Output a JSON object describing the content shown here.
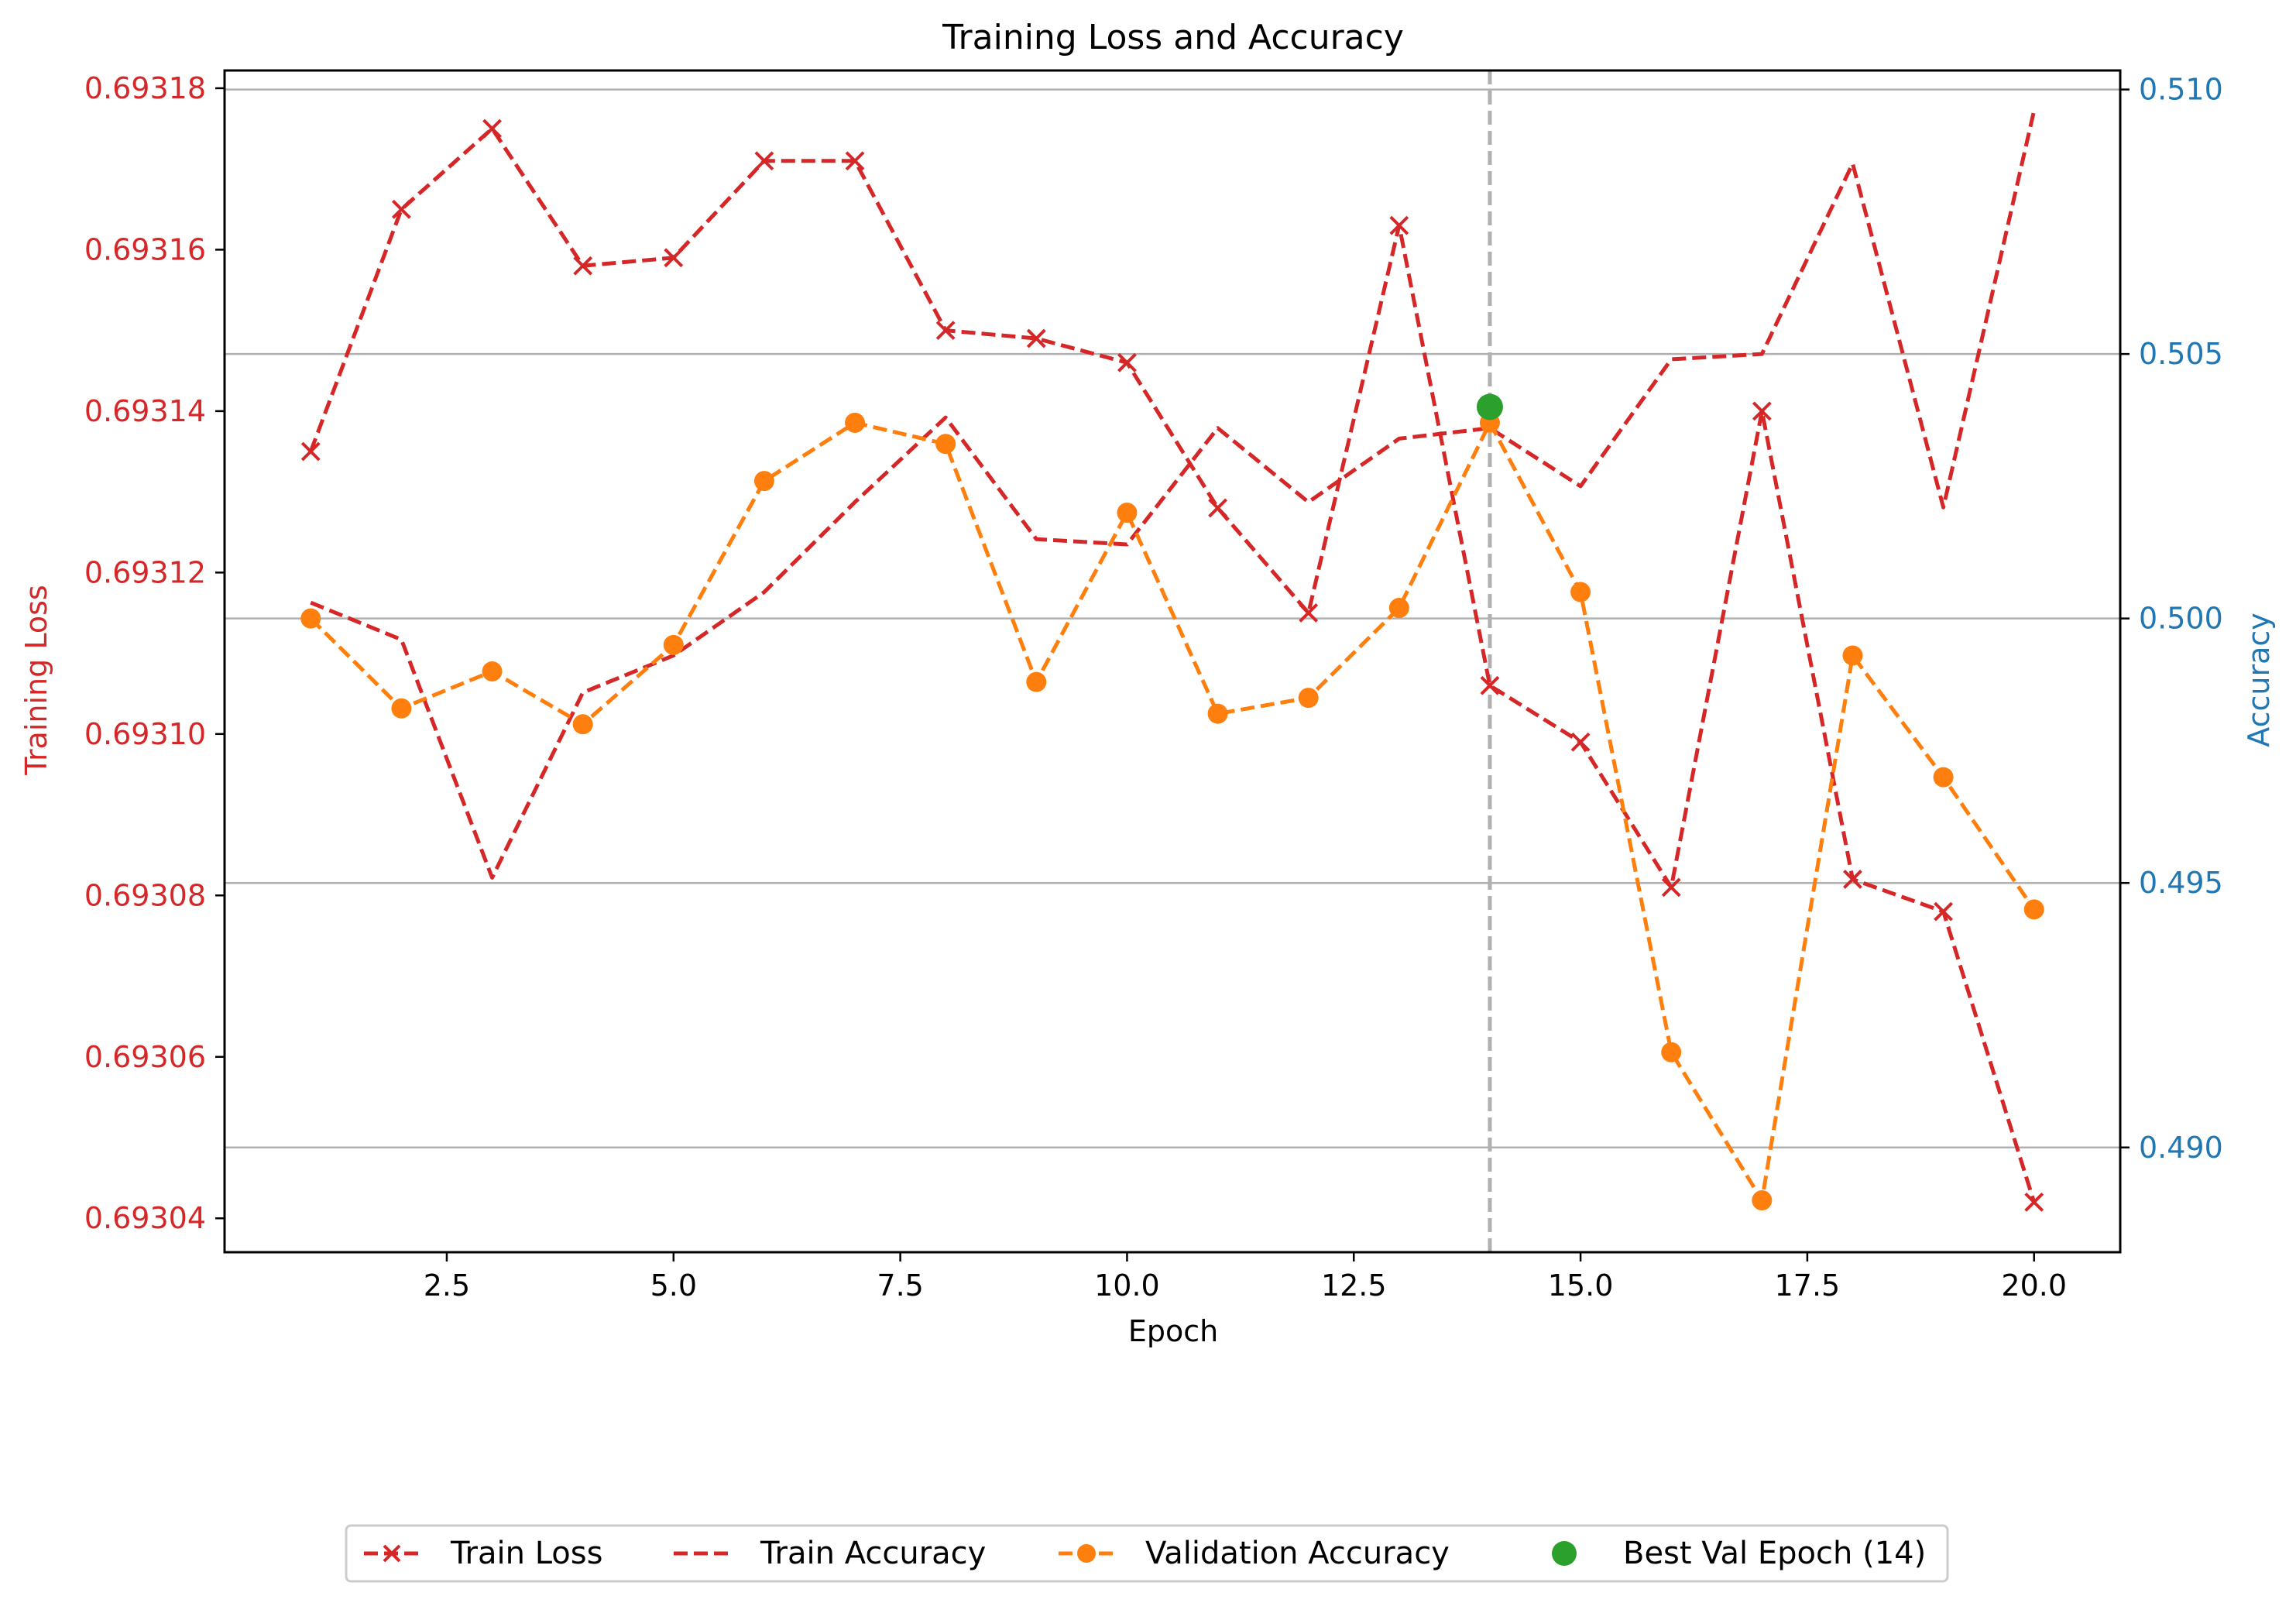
{
  "chart_data": {
    "type": "line",
    "title": "Training Loss and Accuracy",
    "xlabel": "Epoch",
    "ylabel_left": "Training Loss",
    "ylabel_right": "Accuracy",
    "xlim": [
      0.05,
      20.95
    ],
    "ylim_left": [
      0.6930358,
      0.6931822
    ],
    "ylim_right": [
      0.48802,
      0.51036
    ],
    "x_ticks": [
      2.5,
      5.0,
      7.5,
      10.0,
      12.5,
      15.0,
      17.5,
      20.0
    ],
    "x_tick_labels": [
      "2.5",
      "5.0",
      "7.5",
      "10.0",
      "12.5",
      "15.0",
      "17.5",
      "20.0"
    ],
    "y_left_ticks": [
      0.69304,
      0.69306,
      0.69308,
      0.6931,
      0.69312,
      0.69314,
      0.69316,
      0.69318
    ],
    "y_left_tick_labels": [
      "0.69304",
      "0.69306",
      "0.69308",
      "0.69310",
      "0.69312",
      "0.69314",
      "0.69316",
      "0.69318"
    ],
    "y_right_ticks": [
      0.49,
      0.495,
      0.5,
      0.505,
      0.51
    ],
    "y_right_tick_labels": [
      "0.490",
      "0.495",
      "0.500",
      "0.505",
      "0.510"
    ],
    "grid": "horizontal (right axis)",
    "legend_position": "bottom-center",
    "best_epoch_line_x": 14,
    "x": [
      1,
      2,
      3,
      4,
      5,
      6,
      7,
      8,
      9,
      10,
      11,
      12,
      13,
      14,
      15,
      16,
      17,
      18,
      19,
      20
    ],
    "series": [
      {
        "name": "Train Loss",
        "axis": "left",
        "color": "#d62728",
        "marker": "x",
        "values": [
          0.693135,
          0.693165,
          0.693175,
          0.693158,
          0.693159,
          0.693171,
          0.693171,
          0.69315,
          0.693149,
          0.693146,
          0.693128,
          0.693115,
          0.693163,
          0.693106,
          0.693099,
          0.693081,
          0.69314,
          0.693082,
          0.693078,
          0.693042
        ]
      },
      {
        "name": "Train Accuracy",
        "axis": "right",
        "color": "#d62728",
        "marker": "none",
        "values": [
          0.5003,
          0.4996,
          0.4951,
          0.4986,
          0.4993,
          0.5005,
          0.5022,
          0.5038,
          0.5015,
          0.5014,
          0.5036,
          0.5022,
          0.5034,
          0.5036,
          0.5025,
          0.5049,
          0.505,
          0.5086,
          0.5021,
          0.5096
        ]
      },
      {
        "name": "Validation Accuracy",
        "axis": "right",
        "color": "#ff7f0e",
        "marker": "o",
        "values": [
          0.5,
          0.4983,
          0.499,
          0.498,
          0.4995,
          0.5026,
          0.5037,
          0.5033,
          0.4988,
          0.502,
          0.4982,
          0.4985,
          0.5002,
          0.5037,
          0.5005,
          0.4918,
          0.489,
          0.4993,
          0.497,
          0.4945
        ]
      },
      {
        "name": "Best Val Epoch (14)",
        "axis": "right",
        "color": "#2ca02c",
        "marker": "o",
        "x": [
          14
        ],
        "values": [
          0.504
        ]
      }
    ]
  },
  "colors": {
    "loss": "#d62728",
    "accuracy_axis": "#1f77b4",
    "validation": "#ff7f0e",
    "best": "#2ca02c",
    "grid": "#b0b0b0",
    "vline": "#b0b0b0"
  }
}
